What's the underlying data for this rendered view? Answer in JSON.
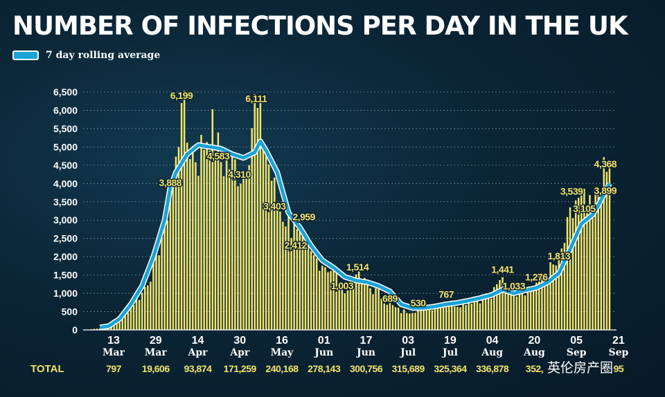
{
  "title": "NUMBER OF INFECTIONS PER DAY IN THE UK",
  "legend": {
    "label": "7 day rolling average",
    "color": "#1aa3d6"
  },
  "colors": {
    "bar": "#f3e56a",
    "line": "#1aa3d6",
    "line_outline": "#ffffff"
  },
  "watermark": "英伦房产圈",
  "chart_data": {
    "type": "bar",
    "title": "NUMBER OF INFECTIONS PER DAY IN THE UK",
    "ylim": [
      0,
      6500
    ],
    "yticks": [
      "0",
      "500",
      "1,000",
      "1,500",
      "2,000",
      "2,500",
      "3,000",
      "3,500",
      "4,000",
      "4,500",
      "5,000",
      "5,500",
      "6,000",
      "6,500"
    ],
    "grid": true,
    "x_ticks": [
      {
        "day": "13",
        "month": "Mar"
      },
      {
        "day": "29",
        "month": "Mar"
      },
      {
        "day": "14",
        "month": "Apr"
      },
      {
        "day": "30",
        "month": "Apr"
      },
      {
        "day": "16",
        "month": "May"
      },
      {
        "day": "01",
        "month": "Jun"
      },
      {
        "day": "17",
        "month": "Jun"
      },
      {
        "day": "03",
        "month": "Jul"
      },
      {
        "day": "19",
        "month": "Jul"
      },
      {
        "day": "04",
        "month": "Aug"
      },
      {
        "day": "20",
        "month": "Aug"
      },
      {
        "day": "05",
        "month": "Sep"
      },
      {
        "day": "21",
        "month": "Sep"
      }
    ],
    "daily_keys": [
      [
        0,
        20
      ],
      [
        6,
        70
      ],
      [
        10,
        250
      ],
      [
        14,
        650
      ],
      [
        18,
        1000
      ],
      [
        22,
        1700
      ],
      [
        26,
        2900
      ],
      [
        28,
        3700
      ],
      [
        30,
        4500
      ],
      [
        32,
        6199
      ],
      [
        34,
        5200
      ],
      [
        38,
        4700
      ],
      [
        42,
        5600
      ],
      [
        46,
        4583
      ],
      [
        50,
        4500
      ],
      [
        54,
        4310
      ],
      [
        58,
        6111
      ],
      [
        62,
        4900
      ],
      [
        66,
        3403
      ],
      [
        70,
        2959
      ],
      [
        74,
        2412
      ],
      [
        78,
        2000
      ],
      [
        82,
        1850
      ],
      [
        86,
        1600
      ],
      [
        90,
        1003
      ],
      [
        94,
        1514
      ],
      [
        98,
        1200
      ],
      [
        102,
        1000
      ],
      [
        106,
        689
      ],
      [
        110,
        500
      ],
      [
        114,
        530
      ],
      [
        118,
        600
      ],
      [
        122,
        630
      ],
      [
        126,
        767
      ],
      [
        130,
        700
      ],
      [
        134,
        800
      ],
      [
        138,
        850
      ],
      [
        142,
        900
      ],
      [
        146,
        1441
      ],
      [
        150,
        1033
      ],
      [
        154,
        1100
      ],
      [
        158,
        1276
      ],
      [
        162,
        1600
      ],
      [
        166,
        1813
      ],
      [
        170,
        3000
      ],
      [
        174,
        3539
      ],
      [
        178,
        3105
      ],
      [
        180,
        3899
      ],
      [
        184,
        4368
      ]
    ],
    "rolling_keys": [
      [
        0,
        40
      ],
      [
        6,
        100
      ],
      [
        10,
        300
      ],
      [
        14,
        700
      ],
      [
        18,
        1200
      ],
      [
        22,
        2000
      ],
      [
        26,
        3000
      ],
      [
        28,
        3888
      ],
      [
        30,
        4300
      ],
      [
        34,
        4800
      ],
      [
        38,
        5050
      ],
      [
        42,
        5000
      ],
      [
        46,
        4950
      ],
      [
        50,
        4800
      ],
      [
        54,
        4700
      ],
      [
        58,
        4850
      ],
      [
        60,
        5150
      ],
      [
        62,
        4900
      ],
      [
        66,
        4300
      ],
      [
        70,
        3200
      ],
      [
        74,
        2800
      ],
      [
        78,
        2300
      ],
      [
        82,
        1900
      ],
      [
        86,
        1700
      ],
      [
        90,
        1450
      ],
      [
        94,
        1350
      ],
      [
        98,
        1300
      ],
      [
        102,
        1200
      ],
      [
        106,
        1050
      ],
      [
        110,
        700
      ],
      [
        114,
        600
      ],
      [
        118,
        600
      ],
      [
        122,
        640
      ],
      [
        126,
        700
      ],
      [
        130,
        740
      ],
      [
        134,
        800
      ],
      [
        138,
        870
      ],
      [
        142,
        950
      ],
      [
        146,
        1100
      ],
      [
        150,
        1000
      ],
      [
        154,
        1080
      ],
      [
        158,
        1150
      ],
      [
        162,
        1300
      ],
      [
        166,
        1550
      ],
      [
        170,
        2200
      ],
      [
        174,
        2900
      ],
      [
        178,
        3150
      ],
      [
        180,
        3400
      ],
      [
        184,
        4000
      ]
    ],
    "annotations": [
      {
        "label": "6,199",
        "day": 32,
        "value": 6199
      },
      {
        "label": "3,888",
        "day": 28,
        "value": 3888
      },
      {
        "label": "4,583",
        "day": 46,
        "value": 4583
      },
      {
        "label": "4,310",
        "day": 54,
        "value": 4310
      },
      {
        "label": "6,111",
        "day": 58,
        "value": 6111
      },
      {
        "label": "3,403",
        "day": 66,
        "value": 3403
      },
      {
        "label": "2,959",
        "day": 72,
        "value": 2959
      },
      {
        "label": "2,412",
        "day": 74,
        "value": 2412
      },
      {
        "label": "1,514",
        "day": 94,
        "value": 1514
      },
      {
        "label": "1,003",
        "day": 90,
        "value": 1003
      },
      {
        "label": "689",
        "day": 106,
        "value": 689
      },
      {
        "label": "530",
        "day": 116,
        "value": 530
      },
      {
        "label": "767",
        "day": 126,
        "value": 767
      },
      {
        "label": "1,441",
        "day": 146,
        "value": 1441
      },
      {
        "label": "1,033",
        "day": 150,
        "value": 1033
      },
      {
        "label": "1,276",
        "day": 158,
        "value": 1276
      },
      {
        "label": "1,813",
        "day": 166,
        "value": 1813
      },
      {
        "label": "3,539",
        "day": 172,
        "value": 3539
      },
      {
        "label": "3,105",
        "day": 176,
        "value": 3105
      },
      {
        "label": "4,368",
        "day": 182,
        "value": 4368
      },
      {
        "label": "3,899",
        "day": 182,
        "value": 3899
      }
    ],
    "totals_label": "TOTAL",
    "totals": [
      "797",
      "19,606",
      "93,874",
      "171,259",
      "240,168",
      "278,143",
      "300,756",
      "315,689",
      "325,364",
      "336,878",
      "352,",
      "",
      "95"
    ]
  }
}
